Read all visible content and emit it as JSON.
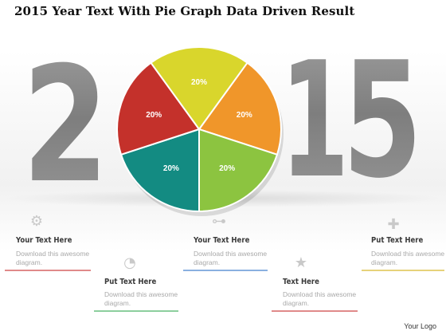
{
  "title": "2015 Year Text With Pie Graph Data Driven Result",
  "year_digits": [
    "2",
    "1",
    "5"
  ],
  "chart_data": {
    "type": "pie",
    "slices": [
      {
        "label": "20%",
        "value": 20,
        "color": "#f0962a"
      },
      {
        "label": "20%",
        "value": 20,
        "color": "#8cc440"
      },
      {
        "label": "20%",
        "value": 20,
        "color": "#138b82"
      },
      {
        "label": "20%",
        "value": 20,
        "color": "#c4312b"
      },
      {
        "label": "20%",
        "value": 20,
        "color": "#d9d62c"
      }
    ],
    "start_angle_deg": -54
  },
  "items": [
    {
      "icon": "gear-icon",
      "glyph": "⚙",
      "title": "Your Text Here",
      "body": "Download this awesome diagram.",
      "line_color": "#e08a8a"
    },
    {
      "icon": "rss-icon",
      "glyph": "◔",
      "title": "Put Text Here",
      "body": "Download this awesome diagram.",
      "line_color": "#8ccf9e"
    },
    {
      "icon": "share-icon",
      "glyph": "⊶",
      "title": "Your Text Here",
      "body": "Download this awesome diagram.",
      "line_color": "#8ab0e0"
    },
    {
      "icon": "star-icon",
      "glyph": "★",
      "title": "Text Here",
      "body": "Download this awesome diagram.",
      "line_color": "#e08a8a"
    },
    {
      "icon": "plus-icon",
      "glyph": "✚",
      "title": "Put Text Here",
      "body": "Download this awesome diagram.",
      "line_color": "#e6d27a"
    }
  ],
  "logo": "Your Logo"
}
